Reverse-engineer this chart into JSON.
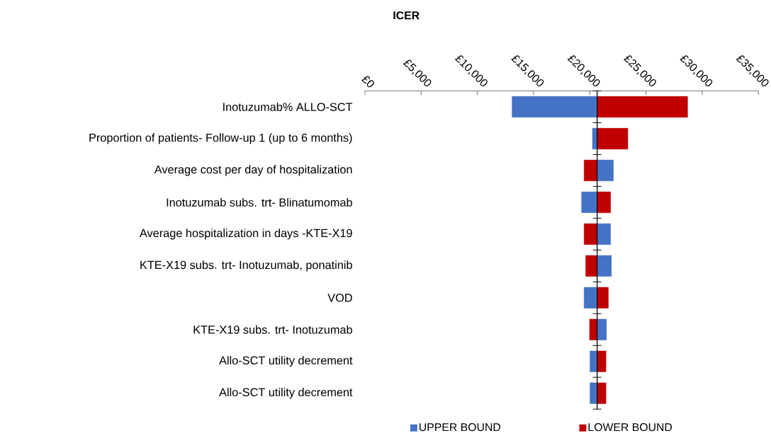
{
  "chart_data": {
    "type": "bar",
    "orientation": "horizontal",
    "title": "ICER",
    "categories": [
      "Inotuzumab% ALLO-SCT",
      "Proportion of patients- Follow-up 1 (up to 6 months)",
      "Average cost per day of hospitalization",
      "Inotuzumab subs. trt- Blinatumomab",
      "Average hospitalization in days -KTE-X19",
      "KTE-X19 subs. trt- Inotuzumab, ponatinib",
      "VOD",
      "KTE-X19 subs. trt- Inotuzumab",
      "Allo-SCT utility decrement",
      "Allo-SCT utility decrement"
    ],
    "series": [
      {
        "name": "UPPER BOUND",
        "color": "#4472c4",
        "base": [
          20650,
          20650,
          20650,
          20650,
          20650,
          20650,
          20650,
          20650,
          20650,
          20650
        ],
        "values": [
          -7600,
          -450,
          1480,
          -1420,
          1230,
          1300,
          -1190,
          860,
          -670,
          -670
        ]
      },
      {
        "name": "LOWER BOUND",
        "color": "#c00000",
        "base": [
          20650,
          20650,
          20650,
          20650,
          20650,
          20650,
          20650,
          20650,
          20650,
          20650
        ],
        "values": [
          8080,
          2770,
          -1190,
          1230,
          -1190,
          -1050,
          1030,
          -710,
          820,
          820
        ]
      }
    ],
    "xlim": [
      0,
      35000
    ],
    "xticks": [
      {
        "value": 0,
        "label": "£0"
      },
      {
        "value": 5000,
        "label": "£5,000"
      },
      {
        "value": 10000,
        "label": "£10,000"
      },
      {
        "value": 15000,
        "label": "£15,000"
      },
      {
        "value": 20000,
        "label": "£20,000"
      },
      {
        "value": 25000,
        "label": "£25,000"
      },
      {
        "value": 30000,
        "label": "£30,000"
      },
      {
        "value": 35000,
        "label": "£35,000"
      }
    ],
    "ref_lines": [
      {
        "axis": "x",
        "value": 20650,
        "color": "#000000"
      }
    ],
    "legend": "bottom"
  }
}
